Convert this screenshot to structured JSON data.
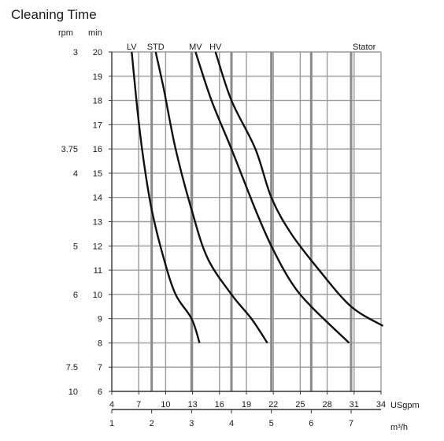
{
  "chart_data": {
    "type": "line",
    "title": "Cleaning Time",
    "left_axis_unit": "rpm",
    "y_unit": "min",
    "bottom_unit_1": "USgpm",
    "bottom_unit_2": "m³/h",
    "stator_label": "Stator",
    "ylim": [
      6,
      20
    ],
    "y_ticks": [
      6,
      7,
      8,
      9,
      10,
      11,
      12,
      13,
      14,
      15,
      16,
      17,
      18,
      19,
      20
    ],
    "rpm_labels": [
      {
        "label": "3",
        "y": 20
      },
      {
        "label": "3.75",
        "y": 16
      },
      {
        "label": "4",
        "y": 15
      },
      {
        "label": "5",
        "y": 12
      },
      {
        "label": "6",
        "y": 10
      },
      {
        "label": "7.5",
        "y": 7
      },
      {
        "label": "10",
        "y": 6
      }
    ],
    "usgpm_ticks": [
      "4",
      "7",
      "10",
      "13",
      "16",
      "19",
      "22",
      "25",
      "28",
      "31",
      "34"
    ],
    "m3h_ticks": [
      "1",
      "2",
      "3",
      "4",
      "5",
      "6",
      "7"
    ],
    "xlim_m3h": [
      1,
      7.8
    ],
    "grid": true,
    "series": [
      {
        "name": "LV",
        "points": [
          [
            1.5,
            20
          ],
          [
            1.65,
            17.5
          ],
          [
            1.8,
            15.5
          ],
          [
            2.0,
            13.5
          ],
          [
            2.3,
            11.5
          ],
          [
            2.6,
            10
          ],
          [
            3.0,
            9
          ],
          [
            3.2,
            8
          ]
        ]
      },
      {
        "name": "STD",
        "points": [
          [
            2.1,
            20
          ],
          [
            2.3,
            18.5
          ],
          [
            2.6,
            16
          ],
          [
            3.0,
            13.5
          ],
          [
            3.4,
            11.5
          ],
          [
            4.0,
            10
          ],
          [
            4.5,
            9
          ],
          [
            4.9,
            8
          ]
        ]
      },
      {
        "name": "MV",
        "points": [
          [
            3.1,
            20
          ],
          [
            3.5,
            18
          ],
          [
            4.0,
            16
          ],
          [
            4.6,
            13.5
          ],
          [
            5.0,
            12
          ],
          [
            5.5,
            10.5
          ],
          [
            6.0,
            9.5
          ],
          [
            6.95,
            8
          ]
        ]
      },
      {
        "name": "HV",
        "points": [
          [
            3.6,
            20
          ],
          [
            4.0,
            18
          ],
          [
            4.6,
            16
          ],
          [
            5.0,
            14
          ],
          [
            5.5,
            12.5
          ],
          [
            6.2,
            11
          ],
          [
            7.0,
            9.5
          ],
          [
            7.8,
            8.7
          ]
        ]
      }
    ]
  }
}
